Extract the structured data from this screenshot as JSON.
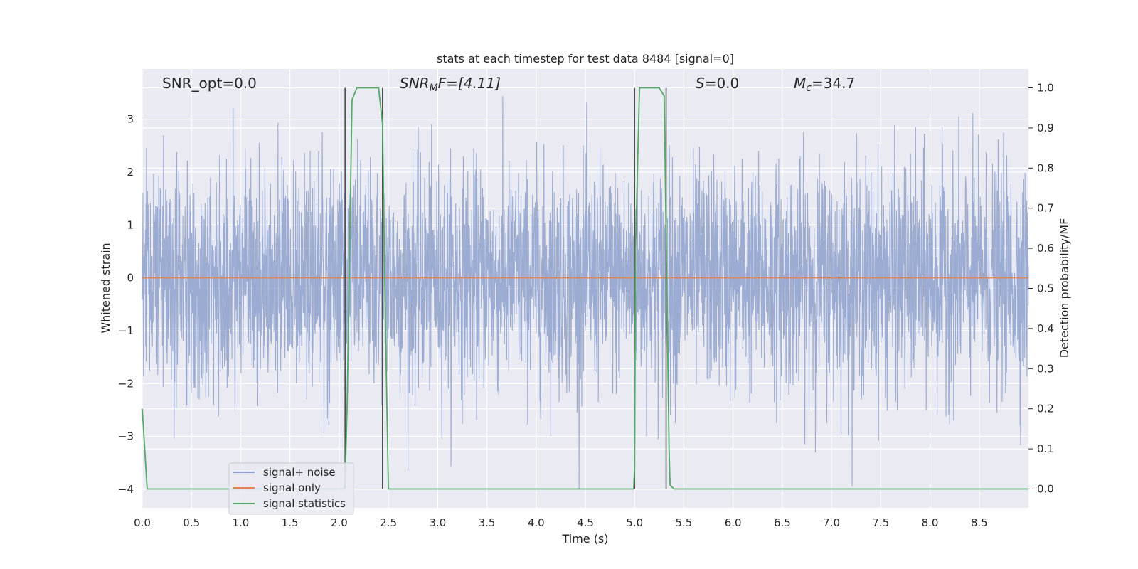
{
  "chart_data": {
    "type": "line",
    "title": "stats at each timestep for test data 8484 [signal=0]",
    "xlabel": "Time (s)",
    "ylabel": "Whitened strain",
    "ylabel_right": "Detection probability/MF",
    "xlim": [
      0.0,
      9.0
    ],
    "ylim": [
      -4.35,
      3.95
    ],
    "ylim_right": [
      -0.047,
      1.047
    ],
    "x_ticks": [
      "0.0",
      "0.5",
      "1.0",
      "1.5",
      "2.0",
      "2.5",
      "3.0",
      "3.5",
      "4.0",
      "4.5",
      "5.0",
      "5.5",
      "6.0",
      "6.5",
      "7.0",
      "7.5",
      "8.0",
      "8.5"
    ],
    "y_ticks": [
      "3",
      "2",
      "1",
      "0",
      "−1",
      "−2",
      "−3",
      "−4"
    ],
    "y_ticks_right": [
      "1.0",
      "0.9",
      "0.8",
      "0.7",
      "0.6",
      "0.5",
      "0.4",
      "0.3",
      "0.2",
      "0.1",
      "0.0"
    ],
    "grid": true,
    "legend_position": "lower-left",
    "annotations": {
      "snr_opt": "SNR_opt=0.0",
      "snr_mf_main": "SNR",
      "snr_mf_sub": "M",
      "snr_mf_rest": "F=[4.11]",
      "s_italic": "S",
      "s_rest": "=0.0",
      "mc_main": "M",
      "mc_sub": "c",
      "mc_rest": "=34.7"
    },
    "series": [
      {
        "name": "signal+ noise",
        "color": "#8da0cb",
        "description_values": "whitened noise, amplitude roughly within [-4, 3.6]"
      },
      {
        "name": "signal only",
        "color": "#dd8452",
        "x": [
          0.0,
          9.0
        ],
        "y": [
          0.0,
          0.0
        ]
      },
      {
        "name": "signal statistics",
        "color": "#55a868",
        "axis": "right",
        "x": [
          0.0,
          0.05,
          0.1,
          2.0,
          2.05,
          2.06,
          2.08,
          2.13,
          2.18,
          2.25,
          2.4,
          2.44,
          2.47,
          2.5,
          2.55,
          4.99,
          5.0,
          5.01,
          5.05,
          5.1,
          5.25,
          5.3,
          5.35,
          5.36,
          5.4,
          9.0
        ],
        "y": [
          0.2,
          0.0,
          0.0,
          0.0,
          0.0,
          0.02,
          0.2,
          0.97,
          1.0,
          1.0,
          1.0,
          0.91,
          0.4,
          0.0,
          0.0,
          0.0,
          0.05,
          0.6,
          1.0,
          1.0,
          1.0,
          0.98,
          0.1,
          0.01,
          0.0,
          0.0
        ]
      }
    ],
    "vertical_lines_x": [
      2.06,
      2.44,
      5.0,
      5.32
    ],
    "colors": {
      "background": "#eaeaf2",
      "grid": "#ffffff",
      "vline": "#4d4d4d"
    }
  }
}
